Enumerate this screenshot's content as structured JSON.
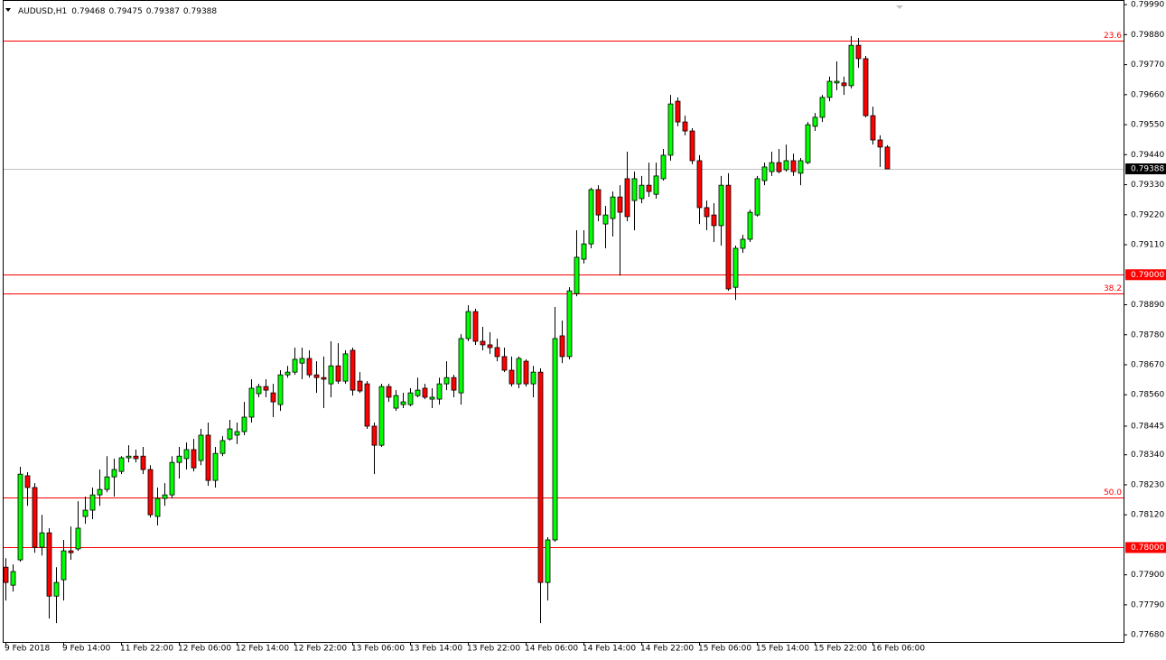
{
  "chart_data": {
    "type": "candlestick",
    "title": "AUDUSD,H1",
    "categories": [
      "9 Feb 2018",
      null,
      null,
      null,
      null,
      null,
      null,
      null,
      "9 Feb 14:00",
      null,
      null,
      null,
      null,
      null,
      null,
      null,
      "11 Feb 22:00",
      null,
      null,
      null,
      null,
      null,
      null,
      null,
      "12 Feb 06:00",
      null,
      null,
      null,
      null,
      null,
      null,
      null,
      "12 Feb 14:00",
      null,
      null,
      null,
      null,
      null,
      null,
      null,
      "12 Feb 22:00",
      null,
      null,
      null,
      null,
      null,
      null,
      null,
      "13 Feb 06:00",
      null,
      null,
      null,
      null,
      null,
      null,
      null,
      "13 Feb 14:00",
      null,
      null,
      null,
      null,
      null,
      null,
      null,
      "13 Feb 22:00",
      null,
      null,
      null,
      null,
      null,
      null,
      null,
      "14 Feb 06:00",
      null,
      null,
      null,
      null,
      null,
      null,
      null,
      "14 Feb 14:00",
      null,
      null,
      null,
      null,
      null,
      null,
      null,
      "14 Feb 22:00",
      null,
      null,
      null,
      null,
      null,
      null,
      null,
      "15 Feb 06:00",
      null,
      null,
      null,
      null,
      null,
      null,
      null,
      "15 Feb 14:00",
      null,
      null,
      null,
      null,
      null,
      null,
      null,
      "15 Feb 22:00",
      null,
      null,
      null,
      null,
      null,
      null,
      null,
      "16 Feb 06:00",
      null,
      null
    ],
    "open": [
      0.77928,
      0.77862,
      0.77955,
      0.78263,
      0.7822,
      0.78001,
      0.78054,
      0.77822,
      0.77882,
      0.77988,
      0.77995,
      0.78114,
      0.78137,
      0.78193,
      0.78213,
      0.78259,
      0.78279,
      0.78329,
      0.78335,
      0.78335,
      0.78286,
      0.78114,
      0.7818,
      0.78193,
      0.78312,
      0.78326,
      0.78359,
      0.78319,
      0.78412,
      0.78246,
      0.78345,
      0.78398,
      0.78412,
      0.78425,
      0.78478,
      0.78564,
      0.7859,
      0.78567,
      0.78524,
      0.78633,
      0.78643,
      0.78676,
      0.78693,
      0.78633,
      0.78623,
      0.786,
      0.78666,
      0.7861,
      0.78723,
      0.7861,
      0.786,
      0.78445,
      0.78375,
      0.7859,
      0.78511,
      0.78524,
      0.78524,
      0.78557,
      0.78584,
      0.78544,
      0.78544,
      0.786,
      0.78623,
      0.78567,
      0.78766,
      0.78865,
      0.78756,
      0.78743,
      0.78733,
      0.787,
      0.7865,
      0.786,
      0.78683,
      0.786,
      0.78643,
      0.77872,
      0.78028,
      0.78776,
      0.787,
      0.78931,
      0.79057,
      0.79113,
      0.79312,
      0.79186,
      0.79206,
      0.79285,
      0.79352,
      0.79272,
      0.79279,
      0.79328,
      0.79295,
      0.79352,
      0.79438,
      0.79636,
      0.7956,
      0.79527,
      0.79418,
      0.79246,
      0.79219,
      0.7918,
      0.79328,
      0.78954,
      0.79097,
      0.7913,
      0.79219,
      0.79345,
      0.79378,
      0.79411,
      0.79385,
      0.79418,
      0.79372,
      0.79411,
      0.79544,
      0.79577,
      0.7965,
      0.79703,
      0.79703,
      0.79693,
      0.79841,
      0.79792,
      0.79583,
      0.79494,
      0.79468
    ],
    "high": [
      0.77961,
      0.77938,
      0.78296,
      0.78276,
      0.78236,
      0.7812,
      0.78071,
      0.77928,
      0.78028,
      0.78077,
      0.7817,
      0.78187,
      0.7822,
      0.78286,
      0.78335,
      0.78326,
      0.78335,
      0.78375,
      0.78359,
      0.78369,
      0.78302,
      0.7822,
      0.78236,
      0.78335,
      0.78369,
      0.78385,
      0.78398,
      0.78435,
      0.78458,
      0.78369,
      0.78408,
      0.78468,
      0.78458,
      0.78534,
      0.78617,
      0.786,
      0.78617,
      0.786,
      0.7865,
      0.78666,
      0.78733,
      0.78733,
      0.78723,
      0.78683,
      0.787,
      0.78756,
      0.78749,
      0.78723,
      0.78733,
      0.78643,
      0.7861,
      0.78458,
      0.786,
      0.786,
      0.78577,
      0.78567,
      0.78584,
      0.78623,
      0.786,
      0.78584,
      0.78623,
      0.78683,
      0.78633,
      0.78782,
      0.78888,
      0.78875,
      0.78809,
      0.78789,
      0.78766,
      0.78733,
      0.787,
      0.787,
      0.7869,
      0.78666,
      0.78657,
      0.78038,
      0.78882,
      0.78832,
      0.78954,
      0.79163,
      0.79163,
      0.79319,
      0.79328,
      0.79252,
      0.79305,
      0.79328,
      0.79451,
      0.79378,
      0.79362,
      0.79411,
      0.79411,
      0.79461,
      0.79659,
      0.7965,
      0.79583,
      0.79537,
      0.79438,
      0.79272,
      0.79262,
      0.79362,
      0.79372,
      0.79107,
      0.79146,
      0.79239,
      0.79362,
      0.79411,
      0.79451,
      0.79461,
      0.79477,
      0.79444,
      0.79428,
      0.7956,
      0.79593,
      0.79659,
      0.79726,
      0.79782,
      0.79726,
      0.79875,
      0.79868,
      0.79802,
      0.79616,
      0.79511,
      0.79475
    ],
    "low": [
      0.77806,
      0.77839,
      0.77948,
      0.78153,
      0.77981,
      0.77971,
      0.7774,
      0.77723,
      0.77806,
      0.77955,
      0.77988,
      0.78087,
      0.78104,
      0.78153,
      0.78203,
      0.78187,
      0.78269,
      0.78312,
      0.78312,
      0.78269,
      0.7811,
      0.78081,
      0.78153,
      0.7818,
      0.78253,
      0.78286,
      0.78279,
      0.78302,
      0.78226,
      0.7822,
      0.78335,
      0.78392,
      0.78379,
      0.78412,
      0.78458,
      0.78551,
      0.78551,
      0.78478,
      0.78501,
      0.78623,
      0.78633,
      0.78617,
      0.78623,
      0.78567,
      0.78511,
      0.78551,
      0.786,
      0.786,
      0.78557,
      0.78567,
      0.78435,
      0.78269,
      0.78369,
      0.78534,
      0.78501,
      0.78511,
      0.78518,
      0.78551,
      0.78544,
      0.78511,
      0.78524,
      0.78577,
      0.78551,
      0.78524,
      0.78756,
      0.78743,
      0.78723,
      0.7871,
      0.78683,
      0.78643,
      0.7859,
      0.78584,
      0.7859,
      0.78551,
      0.77723,
      0.77806,
      0.78021,
      0.78676,
      0.7869,
      0.78921,
      0.79041,
      0.79097,
      0.79196,
      0.79097,
      0.7914,
      0.78997,
      0.79196,
      0.79163,
      0.79262,
      0.79285,
      0.79279,
      0.79345,
      0.79418,
      0.79544,
      0.79511,
      0.79405,
      0.79186,
      0.79163,
      0.7912,
      0.79107,
      0.78941,
      0.78908,
      0.7908,
      0.7912,
      0.79213,
      0.79328,
      0.79362,
      0.79372,
      0.79378,
      0.79362,
      0.79328,
      0.79405,
      0.79527,
      0.7956,
      0.79636,
      0.79676,
      0.79659,
      0.79683,
      0.79759,
      0.79577,
      0.79477,
      0.79395,
      0.79387
    ],
    "close": [
      0.77872,
      0.77912,
      0.78269,
      0.7822,
      0.78001,
      0.78054,
      0.77822,
      0.77872,
      0.77988,
      0.77981,
      0.78071,
      0.78137,
      0.78193,
      0.78213,
      0.78259,
      0.78286,
      0.78329,
      0.78335,
      0.78326,
      0.78286,
      0.7812,
      0.7818,
      0.78193,
      0.78312,
      0.78335,
      0.78359,
      0.78292,
      0.78412,
      0.78246,
      0.78345,
      0.78392,
      0.78435,
      0.78425,
      0.78478,
      0.78584,
      0.7859,
      0.78577,
      0.78534,
      0.78633,
      0.78643,
      0.7869,
      0.78693,
      0.78633,
      0.78623,
      0.78617,
      0.78666,
      0.7861,
      0.7871,
      0.78577,
      0.78574,
      0.78445,
      0.78375,
      0.7859,
      0.78551,
      0.78557,
      0.78534,
      0.78567,
      0.78577,
      0.78551,
      0.78551,
      0.786,
      0.78623,
      0.78577,
      0.78766,
      0.78865,
      0.78756,
      0.78743,
      0.78733,
      0.787,
      0.7865,
      0.786,
      0.78693,
      0.786,
      0.78643,
      0.77872,
      0.78028,
      0.78766,
      0.787,
      0.78941,
      0.79064,
      0.79113,
      0.79312,
      0.79219,
      0.79219,
      0.79285,
      0.79229,
      0.79213,
      0.79352,
      0.79328,
      0.79305,
      0.79362,
      0.79438,
      0.79626,
      0.7956,
      0.79527,
      0.79418,
      0.79246,
      0.79213,
      0.7918,
      0.79328,
      0.78948,
      0.79097,
      0.7913,
      0.79229,
      0.79352,
      0.79395,
      0.79411,
      0.79378,
      0.79418,
      0.79378,
      0.79418,
      0.7955,
      0.79577,
      0.7965,
      0.79709,
      0.79709,
      0.79693,
      0.79841,
      0.79792,
      0.79583,
      0.79494,
      0.79468,
      0.79388
    ],
    "up_color": "#00ff00",
    "down_color": "#ff0000",
    "level_color": "#ff0000",
    "ylim": [
      0.77654,
      0.80007
    ],
    "yticks": [
      {
        "value": 0.7999,
        "label": "0.79990"
      },
      {
        "value": 0.7988,
        "label": "0.79880"
      },
      {
        "value": 0.7977,
        "label": "0.79770"
      },
      {
        "value": 0.7966,
        "label": "0.79660"
      },
      {
        "value": 0.7955,
        "label": "0.79550"
      },
      {
        "value": 0.7944,
        "label": "0.79440"
      },
      {
        "value": 0.7933,
        "label": "0.79330"
      },
      {
        "value": 0.7922,
        "label": "0.79220"
      },
      {
        "value": 0.7911,
        "label": "0.79110"
      },
      {
        "value": 0.7889,
        "label": "0.78890"
      },
      {
        "value": 0.7878,
        "label": "0.78780"
      },
      {
        "value": 0.7867,
        "label": "0.78670"
      },
      {
        "value": 0.7856,
        "label": "0.78560"
      },
      0.78445,
      {
        "value": 0.7834,
        "label": "0.78340"
      },
      {
        "value": 0.7823,
        "label": "0.78230"
      },
      {
        "value": 0.7812,
        "label": "0.78120"
      },
      {
        "value": 0.779,
        "label": "0.77900"
      },
      {
        "value": 0.7779,
        "label": "0.77790"
      },
      {
        "value": 0.7768,
        "label": "0.77680"
      }
    ],
    "fib_levels": [
      {
        "value": 0.79858,
        "label": "23.6"
      },
      {
        "value": 0.78931,
        "label": "38.2"
      },
      {
        "value": 0.78183,
        "label": "50.0"
      }
    ],
    "price_lines": [
      {
        "value": 0.79,
        "label": "0.79000"
      },
      {
        "value": 0.78,
        "label": "0.78000"
      }
    ]
  }
}
